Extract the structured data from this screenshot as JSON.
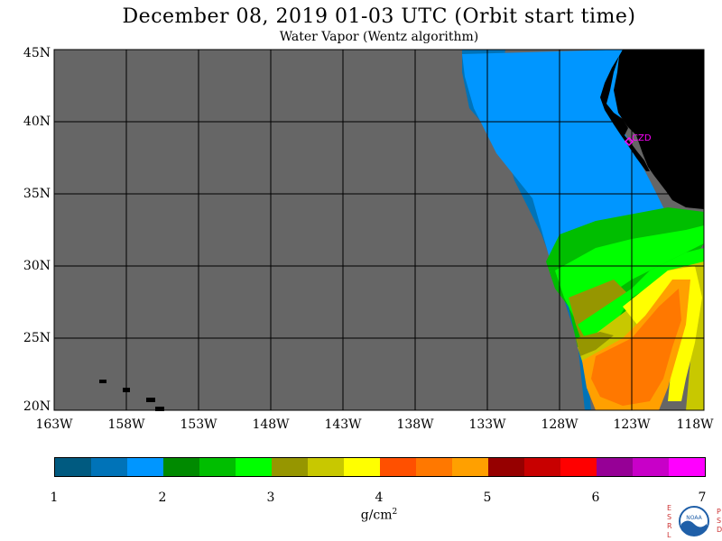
{
  "title": "December 08, 2019  01-03 UTC  (Orbit start time)",
  "subtitle": "Water Vapor (Wentz algorithm)",
  "map": {
    "lat_labels": [
      "45N",
      "40N",
      "35N",
      "30N",
      "25N",
      "20N"
    ],
    "lon_labels": [
      "163W",
      "158W",
      "153W",
      "148W",
      "143W",
      "138W",
      "133W",
      "128W",
      "123W",
      "118W"
    ],
    "station_label": "CZD",
    "colors": {
      "no_data": "#666666",
      "land": "#000000",
      "grid": "#000000",
      "station": "#ff00ff"
    }
  },
  "colorbar": {
    "tick_labels": [
      "1",
      "2",
      "3",
      "4",
      "5",
      "6",
      "7"
    ],
    "units_base": "g/cm",
    "units_sup": "2",
    "colors": [
      "#005a80",
      "#0073b8",
      "#0096ff",
      "#008a00",
      "#00be00",
      "#00ff00",
      "#969600",
      "#c8c800",
      "#ffff00",
      "#ff5000",
      "#ff7800",
      "#ffa000",
      "#960000",
      "#c80000",
      "#ff0000",
      "#960096",
      "#c800c8",
      "#ff00ff"
    ]
  },
  "logo": {
    "left_letters": [
      "E",
      "S",
      "R",
      "L"
    ],
    "right_letters": [
      "P",
      "S",
      "D"
    ],
    "center_text": "NOAA"
  }
}
